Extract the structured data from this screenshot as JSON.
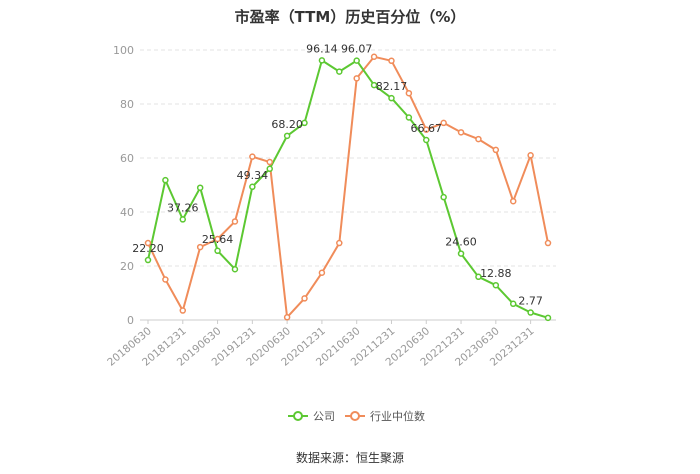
{
  "chart_data": {
    "type": "line",
    "title": "市盈率（TTM）历史百分位（%）",
    "source": "数据来源：恒生聚源",
    "ylim": [
      0,
      100
    ],
    "yticks": [
      0,
      20,
      40,
      60,
      80,
      100
    ],
    "grid": "horizontal-dashed",
    "legend_position": "bottom-center",
    "x": [
      "20180630",
      "20180930",
      "20181231",
      "20190331",
      "20190630",
      "20190930",
      "20191231",
      "20200331",
      "20200630",
      "20200930",
      "20201231",
      "20210331",
      "20210630",
      "20210930",
      "20211231",
      "20220331",
      "20220630",
      "20220930",
      "20221231",
      "20230331",
      "20230630",
      "20230930",
      "20231231",
      "20240331"
    ],
    "xtick_labels": [
      "20180630",
      "20181231",
      "20190630",
      "20191231",
      "20200630",
      "20201231",
      "20210630",
      "20211231",
      "20220630",
      "20221231",
      "20230630",
      "20231231"
    ],
    "series": [
      {
        "name": "公司",
        "color": "#5cc832",
        "values": [
          22.2,
          51.8,
          37.26,
          49.0,
          25.64,
          18.8,
          49.34,
          56.0,
          68.2,
          73.0,
          96.14,
          92.0,
          96.07,
          87.0,
          82.17,
          75.0,
          66.67,
          45.5,
          24.6,
          16.0,
          12.88,
          6.0,
          2.77,
          0.8
        ],
        "labels": [
          {
            "i": 0,
            "text": "22.20"
          },
          {
            "i": 2,
            "text": "37.26"
          },
          {
            "i": 4,
            "text": "25.64"
          },
          {
            "i": 6,
            "text": "49.34"
          },
          {
            "i": 8,
            "text": "68.20"
          },
          {
            "i": 10,
            "text": "96.14"
          },
          {
            "i": 12,
            "text": "96.07"
          },
          {
            "i": 14,
            "text": "82.17"
          },
          {
            "i": 16,
            "text": "66.67"
          },
          {
            "i": 18,
            "text": "24.60"
          },
          {
            "i": 20,
            "text": "12.88"
          },
          {
            "i": 22,
            "text": "2.77"
          }
        ]
      },
      {
        "name": "行业中位数",
        "color": "#f08c5a",
        "values": [
          28.5,
          15.0,
          3.5,
          27.0,
          30.0,
          36.5,
          60.5,
          58.5,
          1.0,
          8.0,
          17.5,
          28.5,
          89.5,
          97.5,
          96.0,
          84.0,
          70.5,
          73.0,
          69.5,
          67.0,
          63.0,
          44.0,
          61.0,
          28.5
        ]
      }
    ]
  }
}
